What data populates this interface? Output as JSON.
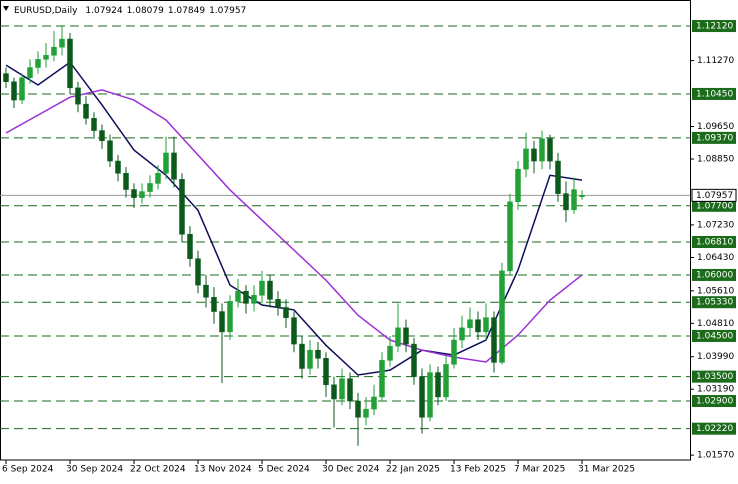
{
  "chart_data": {
    "type": "candlestick",
    "header": {
      "symbol": "EURUSD,Daily",
      "open": 1.07924,
      "high": 1.08079,
      "low": 1.07849,
      "close": 1.07957
    },
    "ylim": [
      1.0145,
      1.1276
    ],
    "yticks": [
      {
        "value": 1.1127,
        "label": "1.11270"
      },
      {
        "value": 1.0965,
        "label": "1.09650"
      },
      {
        "value": 1.0885,
        "label": "1.08850"
      },
      {
        "value": 1.0723,
        "label": "1.07230"
      },
      {
        "value": 1.0643,
        "label": "1.06430"
      },
      {
        "value": 1.0561,
        "label": "1.05610"
      },
      {
        "value": 1.0481,
        "label": "1.04810"
      },
      {
        "value": 1.0399,
        "label": "1.03990"
      },
      {
        "value": 1.0319,
        "label": "1.03190"
      },
      {
        "value": 1.0157,
        "label": "1.01570"
      }
    ],
    "levels": [
      {
        "value": 1.1212,
        "label": "1.12120"
      },
      {
        "value": 1.1045,
        "label": "1.10450"
      },
      {
        "value": 1.0937,
        "label": "1.09370"
      },
      {
        "value": 1.077,
        "label": "1.07700"
      },
      {
        "value": 1.0681,
        "label": "1.06810"
      },
      {
        "value": 1.06,
        "label": "1.06000"
      },
      {
        "value": 1.0533,
        "label": "1.05330"
      },
      {
        "value": 1.045,
        "label": "1.04500"
      },
      {
        "value": 1.035,
        "label": "1.03500"
      },
      {
        "value": 1.029,
        "label": "1.02900"
      },
      {
        "value": 1.0222,
        "label": "1.02220"
      }
    ],
    "level_color": "#1b6b1b",
    "last_price": 1.07957,
    "categories": [
      "6 Sep 2024",
      null,
      null,
      null,
      null,
      null,
      null,
      null,
      "30 Sep 2024",
      null,
      null,
      null,
      null,
      null,
      null,
      null,
      "22 Oct 2024",
      null,
      null,
      null,
      null,
      null,
      null,
      null,
      "13 Nov 2024",
      null,
      null,
      null,
      null,
      null,
      null,
      null,
      "5 Dec 2024",
      null,
      null,
      null,
      null,
      null,
      null,
      null,
      "30 Dec 2024",
      null,
      null,
      null,
      null,
      null,
      null,
      null,
      "22 Jan 2025",
      null,
      null,
      null,
      null,
      null,
      null,
      null,
      "13 Feb 2025",
      null,
      null,
      null,
      null,
      null,
      null,
      null,
      "7 Mar 2025",
      null,
      null,
      null,
      null,
      null,
      null,
      null,
      "31 Mar 2025"
    ],
    "bull_color": "#22a236",
    "bear_color": "#0b5a1c",
    "open": [
      1.1095,
      1.1075,
      1.103,
      1.1085,
      1.111,
      1.113,
      1.114,
      1.116,
      1.118,
      1.106,
      1.102,
      1.0985,
      1.0955,
      1.093,
      1.088,
      1.085,
      1.081,
      1.079,
      1.0805,
      1.0825,
      1.085,
      1.09,
      1.0835,
      1.07,
      1.064,
      1.0575,
      1.0545,
      1.051,
      1.046,
      1.0535,
      1.056,
      1.053,
      1.055,
      1.0585,
      1.054,
      1.052,
      1.0495,
      1.043,
      1.037,
      1.0415,
      1.0395,
      1.033,
      1.0295,
      1.0345,
      1.029,
      1.025,
      1.027,
      1.03,
      1.039,
      1.0425,
      1.047,
      1.043,
      1.035,
      1.025,
      1.036,
      1.03,
      1.038,
      1.044,
      1.047,
      1.049,
      1.046,
      1.0495,
      1.0385,
      1.061,
      1.078,
      1.086,
      1.091,
      1.088,
      1.0935,
      1.088,
      1.08,
      1.076,
      1.07924
    ],
    "high": [
      1.111,
      1.1085,
      1.1095,
      1.113,
      1.115,
      1.117,
      1.12,
      1.1214,
      1.1195,
      1.1075,
      1.104,
      1.1,
      1.097,
      1.0945,
      1.0895,
      1.0865,
      1.0825,
      1.0825,
      1.0845,
      1.087,
      1.094,
      1.094,
      1.085,
      1.072,
      1.066,
      1.06,
      1.057,
      1.053,
      1.055,
      1.059,
      1.0575,
      1.0575,
      1.061,
      1.06,
      1.056,
      1.054,
      1.051,
      1.045,
      1.044,
      1.0435,
      1.041,
      1.035,
      1.037,
      1.036,
      1.031,
      1.03,
      1.033,
      1.041,
      1.045,
      1.053,
      1.049,
      1.0445,
      1.037,
      1.038,
      1.0375,
      1.04,
      1.047,
      1.05,
      1.052,
      1.051,
      1.053,
      1.051,
      1.063,
      1.08,
      1.088,
      1.095,
      1.093,
      1.0955,
      1.0945,
      1.09,
      1.083,
      1.084,
      1.08079
    ],
    "low": [
      1.106,
      1.101,
      1.102,
      1.107,
      1.1095,
      1.111,
      1.1125,
      1.114,
      1.1045,
      1.1,
      1.097,
      1.0935,
      1.091,
      1.0865,
      1.083,
      1.079,
      1.0765,
      1.0775,
      1.079,
      1.081,
      1.0835,
      1.0815,
      1.068,
      1.062,
      1.0555,
      1.052,
      1.048,
      1.0334,
      1.044,
      1.052,
      1.0505,
      1.051,
      1.053,
      1.052,
      1.05,
      1.047,
      1.041,
      1.0345,
      1.0355,
      1.037,
      1.03,
      1.0225,
      1.028,
      1.027,
      1.018,
      1.023,
      1.0255,
      1.029,
      1.0375,
      1.041,
      1.041,
      1.033,
      1.021,
      1.024,
      1.028,
      1.029,
      1.037,
      1.042,
      1.045,
      1.044,
      1.044,
      1.036,
      1.038,
      1.06,
      1.076,
      1.084,
      1.085,
      1.086,
      1.086,
      1.078,
      1.073,
      1.075,
      1.07849
    ],
    "close": [
      1.1075,
      1.103,
      1.1085,
      1.111,
      1.113,
      1.114,
      1.116,
      1.118,
      1.106,
      1.102,
      1.0985,
      1.0955,
      1.093,
      1.088,
      1.085,
      1.081,
      1.079,
      1.0805,
      1.0825,
      1.085,
      1.09,
      1.0835,
      1.07,
      1.064,
      1.0575,
      1.0545,
      1.051,
      1.046,
      1.0535,
      1.056,
      1.053,
      1.055,
      1.0585,
      1.054,
      1.052,
      1.0495,
      1.043,
      1.037,
      1.0415,
      1.0395,
      1.033,
      1.0295,
      1.0345,
      1.029,
      1.025,
      1.027,
      1.03,
      1.039,
      1.0425,
      1.047,
      1.043,
      1.035,
      1.025,
      1.036,
      1.03,
      1.038,
      1.044,
      1.047,
      1.049,
      1.046,
      1.0495,
      1.0385,
      1.061,
      1.078,
      1.086,
      1.091,
      1.088,
      1.0935,
      1.088,
      1.08,
      1.076,
      1.081,
      1.07957
    ],
    "series": [
      {
        "color": "#0d0d5c",
        "x": [
          0,
          4,
          8,
          12,
          16,
          20,
          24,
          28,
          32,
          36,
          40,
          44,
          48,
          52,
          56,
          60,
          64,
          68,
          72
        ],
        "values": [
          1.1116,
          1.1067,
          1.1123,
          1.1018,
          1.0907,
          1.0845,
          1.0759,
          1.0575,
          1.0526,
          1.0514,
          1.0427,
          1.0354,
          1.0366,
          1.0415,
          1.0403,
          1.044,
          1.0612,
          1.0845,
          1.0833
        ]
      },
      {
        "color": "#9b30d9",
        "x": [
          0,
          4,
          8,
          12,
          16,
          20,
          24,
          28,
          32,
          36,
          40,
          44,
          48,
          52,
          56,
          60,
          64,
          68,
          72
        ],
        "values": [
          1.0949,
          1.0993,
          1.1037,
          1.1055,
          1.103,
          1.0981,
          1.0895,
          1.0809,
          1.0735,
          1.0661,
          1.0587,
          1.0501,
          1.044,
          1.0415,
          1.0398,
          1.0386,
          1.0452,
          1.0538,
          1.06
        ]
      }
    ]
  }
}
